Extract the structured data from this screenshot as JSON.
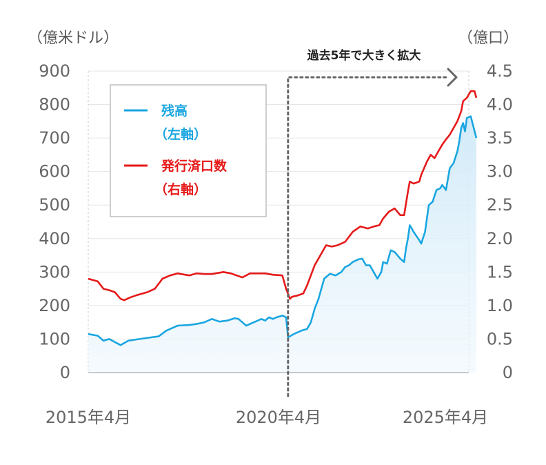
{
  "chart_data": {
    "type": "line",
    "left_unit": "（億米ドル）",
    "right_unit": "（億口）",
    "left_ylim": [
      0,
      900
    ],
    "right_ylim": [
      0,
      4.5
    ],
    "left_ticks": [
      "0",
      "100",
      "200",
      "300",
      "400",
      "500",
      "600",
      "700",
      "800",
      "900"
    ],
    "right_ticks": [
      "0",
      "0.5",
      "1.0",
      "1.5",
      "2.0",
      "2.5",
      "3.0",
      "3.5",
      "4.0",
      "4.5"
    ],
    "x_tick_labels": [
      "2015年4月",
      "2020年4月",
      "2025年4月"
    ],
    "x_range": [
      2015.25,
      2025.25
    ],
    "annotation": "過去5年で大きく拡大",
    "annotation_x": 2020.5,
    "legend": [
      {
        "line1": "残高",
        "line2": "（左軸）"
      },
      {
        "line1": "発行済口数",
        "line2": "（右軸）"
      }
    ],
    "colors": {
      "balance": "#1aa6e0",
      "units": "#e61919",
      "grid": "#e6e6e6",
      "area_top": "#cfe9f8",
      "annotation": "#666666"
    },
    "series": [
      {
        "axis": "left",
        "points": [
          [
            2015.25,
            115
          ],
          [
            2015.5,
            110
          ],
          [
            2015.65,
            95
          ],
          [
            2015.8,
            100
          ],
          [
            2016.0,
            88
          ],
          [
            2016.1,
            82
          ],
          [
            2016.3,
            95
          ],
          [
            2016.6,
            100
          ],
          [
            2016.9,
            105
          ],
          [
            2017.1,
            108
          ],
          [
            2017.3,
            125
          ],
          [
            2017.6,
            140
          ],
          [
            2017.9,
            142
          ],
          [
            2018.1,
            145
          ],
          [
            2018.3,
            150
          ],
          [
            2018.5,
            160
          ],
          [
            2018.7,
            152
          ],
          [
            2018.9,
            155
          ],
          [
            2019.1,
            162
          ],
          [
            2019.2,
            160
          ],
          [
            2019.3,
            150
          ],
          [
            2019.4,
            140
          ],
          [
            2019.6,
            150
          ],
          [
            2019.8,
            160
          ],
          [
            2019.9,
            155
          ],
          [
            2020.0,
            165
          ],
          [
            2020.1,
            160
          ],
          [
            2020.2,
            165
          ],
          [
            2020.35,
            170
          ],
          [
            2020.45,
            165
          ],
          [
            2020.5,
            105
          ],
          [
            2020.65,
            115
          ],
          [
            2020.85,
            125
          ],
          [
            2021.0,
            130
          ],
          [
            2021.1,
            150
          ],
          [
            2021.2,
            190
          ],
          [
            2021.3,
            220
          ],
          [
            2021.45,
            280
          ],
          [
            2021.6,
            295
          ],
          [
            2021.75,
            290
          ],
          [
            2021.9,
            300
          ],
          [
            2022.0,
            315
          ],
          [
            2022.1,
            320
          ],
          [
            2022.2,
            330
          ],
          [
            2022.35,
            338
          ],
          [
            2022.45,
            340
          ],
          [
            2022.55,
            320
          ],
          [
            2022.65,
            320
          ],
          [
            2022.75,
            300
          ],
          [
            2022.85,
            280
          ],
          [
            2022.95,
            300
          ],
          [
            2023.0,
            330
          ],
          [
            2023.1,
            325
          ],
          [
            2023.2,
            365
          ],
          [
            2023.3,
            360
          ],
          [
            2023.45,
            340
          ],
          [
            2023.55,
            330
          ],
          [
            2023.6,
            370
          ],
          [
            2023.65,
            400
          ],
          [
            2023.7,
            440
          ],
          [
            2023.8,
            420
          ],
          [
            2023.95,
            395
          ],
          [
            2024.0,
            385
          ],
          [
            2024.1,
            420
          ],
          [
            2024.2,
            500
          ],
          [
            2024.3,
            510
          ],
          [
            2024.4,
            545
          ],
          [
            2024.5,
            550
          ],
          [
            2024.55,
            560
          ],
          [
            2024.65,
            545
          ],
          [
            2024.75,
            610
          ],
          [
            2024.85,
            625
          ],
          [
            2024.95,
            660
          ],
          [
            2025.0,
            690
          ],
          [
            2025.05,
            730
          ],
          [
            2025.1,
            745
          ],
          [
            2025.15,
            720
          ],
          [
            2025.2,
            760
          ],
          [
            2025.3,
            765
          ],
          [
            2025.45,
            700
          ]
        ]
      },
      {
        "axis": "right",
        "points": [
          [
            2015.25,
            1.4
          ],
          [
            2015.5,
            1.36
          ],
          [
            2015.65,
            1.25
          ],
          [
            2015.8,
            1.23
          ],
          [
            2015.95,
            1.2
          ],
          [
            2016.1,
            1.1
          ],
          [
            2016.2,
            1.08
          ],
          [
            2016.35,
            1.12
          ],
          [
            2016.5,
            1.15
          ],
          [
            2016.8,
            1.2
          ],
          [
            2017.0,
            1.25
          ],
          [
            2017.2,
            1.4
          ],
          [
            2017.4,
            1.45
          ],
          [
            2017.6,
            1.48
          ],
          [
            2017.9,
            1.45
          ],
          [
            2018.1,
            1.48
          ],
          [
            2018.3,
            1.47
          ],
          [
            2018.5,
            1.47
          ],
          [
            2018.8,
            1.5
          ],
          [
            2019.0,
            1.48
          ],
          [
            2019.3,
            1.42
          ],
          [
            2019.5,
            1.48
          ],
          [
            2019.9,
            1.48
          ],
          [
            2020.1,
            1.46
          ],
          [
            2020.35,
            1.45
          ],
          [
            2020.45,
            1.25
          ],
          [
            2020.55,
            1.1
          ],
          [
            2020.6,
            1.13
          ],
          [
            2020.75,
            1.15
          ],
          [
            2020.9,
            1.18
          ],
          [
            2021.0,
            1.3
          ],
          [
            2021.2,
            1.6
          ],
          [
            2021.35,
            1.75
          ],
          [
            2021.5,
            1.9
          ],
          [
            2021.65,
            1.88
          ],
          [
            2021.8,
            1.9
          ],
          [
            2022.0,
            1.95
          ],
          [
            2022.2,
            2.1
          ],
          [
            2022.4,
            2.18
          ],
          [
            2022.6,
            2.15
          ],
          [
            2022.75,
            2.18
          ],
          [
            2022.9,
            2.2
          ],
          [
            2023.0,
            2.3
          ],
          [
            2023.15,
            2.4
          ],
          [
            2023.3,
            2.45
          ],
          [
            2023.45,
            2.35
          ],
          [
            2023.55,
            2.35
          ],
          [
            2023.65,
            2.7
          ],
          [
            2023.7,
            2.85
          ],
          [
            2023.8,
            2.82
          ],
          [
            2023.95,
            2.85
          ],
          [
            2024.0,
            2.95
          ],
          [
            2024.15,
            3.15
          ],
          [
            2024.25,
            3.25
          ],
          [
            2024.35,
            3.2
          ],
          [
            2024.45,
            3.3
          ],
          [
            2024.55,
            3.4
          ],
          [
            2024.65,
            3.48
          ],
          [
            2024.75,
            3.55
          ],
          [
            2024.85,
            3.65
          ],
          [
            2024.95,
            3.75
          ],
          [
            2025.05,
            3.9
          ],
          [
            2025.1,
            4.05
          ],
          [
            2025.2,
            4.1
          ],
          [
            2025.3,
            4.2
          ],
          [
            2025.4,
            4.2
          ],
          [
            2025.45,
            4.1
          ]
        ]
      }
    ]
  }
}
